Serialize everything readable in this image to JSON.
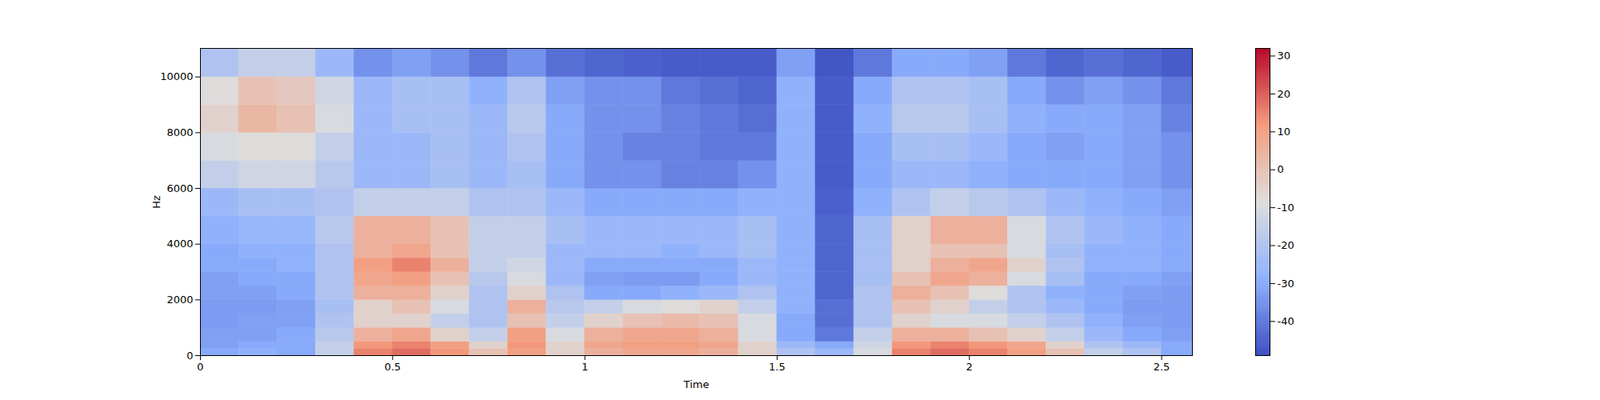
{
  "chart_data": {
    "type": "heatmap",
    "xlabel": "Time",
    "ylabel": "Hz",
    "xlim": [
      0,
      2.58
    ],
    "ylim": [
      0,
      11025
    ],
    "xticks": [
      0,
      0.5,
      1,
      1.5,
      2,
      2.5
    ],
    "yticks": [
      0,
      2000,
      4000,
      6000,
      8000,
      10000
    ],
    "x_edges": [
      0,
      0.1,
      0.2,
      0.3,
      0.4,
      0.5,
      0.6,
      0.7,
      0.8,
      0.9,
      1.0,
      1.1,
      1.2,
      1.3,
      1.4,
      1.5,
      1.6,
      1.7,
      1.8,
      1.9,
      2.0,
      2.1,
      2.2,
      2.3,
      2.4,
      2.5,
      2.58
    ],
    "y_edges": [
      0,
      250,
      500,
      1000,
      1500,
      2000,
      2500,
      3000,
      3500,
      4000,
      5000,
      6000,
      7000,
      8000,
      9000,
      10000,
      11025
    ],
    "cells": [
      [
        -30,
        -28,
        -30,
        -15,
        15,
        18,
        12,
        0,
        10,
        -5,
        5,
        8,
        8,
        5,
        -5,
        -20,
        -25,
        -10,
        15,
        18,
        15,
        10,
        0,
        -15,
        -20,
        -30
      ],
      [
        -32,
        -30,
        -30,
        -15,
        12,
        15,
        10,
        -5,
        12,
        -5,
        8,
        10,
        10,
        8,
        -5,
        -25,
        -30,
        -12,
        12,
        15,
        12,
        8,
        -5,
        -20,
        -25,
        -30
      ],
      [
        -32,
        -32,
        -30,
        -18,
        5,
        8,
        -5,
        -15,
        10,
        -10,
        5,
        8,
        8,
        5,
        -10,
        -30,
        -40,
        -15,
        5,
        5,
        0,
        -5,
        -15,
        -25,
        -30,
        -32
      ],
      [
        -33,
        -32,
        -32,
        -20,
        -5,
        -5,
        -15,
        -20,
        0,
        -15,
        -5,
        0,
        2,
        0,
        -10,
        -30,
        -42,
        -20,
        -5,
        -10,
        -10,
        -15,
        -20,
        -28,
        -32,
        -33
      ],
      [
        -33,
        -33,
        -32,
        -22,
        -5,
        0,
        -10,
        -20,
        5,
        -18,
        -15,
        -10,
        -8,
        -5,
        -15,
        -28,
        -42,
        -20,
        0,
        -5,
        -15,
        -20,
        -25,
        -30,
        -33,
        -33
      ],
      [
        -32,
        -32,
        -30,
        -20,
        5,
        5,
        -5,
        -20,
        -5,
        -20,
        -30,
        -30,
        -28,
        -25,
        -20,
        -28,
        -44,
        -20,
        5,
        0,
        -8,
        -20,
        -28,
        -30,
        -32,
        -33
      ],
      [
        -32,
        -30,
        -30,
        -20,
        8,
        10,
        0,
        -18,
        -10,
        -25,
        -32,
        -33,
        -33,
        -30,
        -25,
        -28,
        -44,
        -22,
        0,
        8,
        5,
        -10,
        -22,
        -30,
        -30,
        -32
      ],
      [
        -30,
        -30,
        -28,
        -20,
        10,
        15,
        5,
        -15,
        -12,
        -25,
        -30,
        -30,
        -30,
        -30,
        -25,
        -28,
        -44,
        -22,
        -5,
        5,
        8,
        -5,
        -20,
        -28,
        -28,
        -30
      ],
      [
        -30,
        -28,
        -28,
        -20,
        5,
        8,
        0,
        -15,
        -15,
        -25,
        -25,
        -25,
        -28,
        -25,
        -22,
        -28,
        -44,
        -22,
        -5,
        0,
        0,
        -10,
        -22,
        -28,
        -28,
        -30
      ],
      [
        -28,
        -26,
        -26,
        -18,
        5,
        5,
        0,
        -15,
        -15,
        -22,
        -25,
        -25,
        -25,
        -25,
        -22,
        -28,
        -44,
        -22,
        -5,
        5,
        5,
        -10,
        -20,
        -25,
        -28,
        -30
      ],
      [
        -25,
        -22,
        -22,
        -20,
        -15,
        -15,
        -15,
        -20,
        -20,
        -25,
        -30,
        -30,
        -30,
        -30,
        -28,
        -28,
        -45,
        -28,
        -20,
        -15,
        -18,
        -20,
        -25,
        -28,
        -30,
        -32
      ],
      [
        -15,
        -12,
        -12,
        -18,
        -25,
        -25,
        -22,
        -25,
        -22,
        -30,
        -35,
        -35,
        -38,
        -38,
        -35,
        -28,
        -46,
        -30,
        -25,
        -25,
        -28,
        -30,
        -30,
        -30,
        -32,
        -35
      ],
      [
        -10,
        -8,
        -8,
        -15,
        -25,
        -25,
        -22,
        -25,
        -20,
        -30,
        -35,
        -38,
        -38,
        -40,
        -40,
        -28,
        -46,
        -30,
        -22,
        -22,
        -25,
        -30,
        -32,
        -30,
        -32,
        -35
      ],
      [
        -5,
        3,
        0,
        -10,
        -25,
        -22,
        -22,
        -25,
        -18,
        -30,
        -35,
        -35,
        -38,
        -40,
        -42,
        -28,
        -46,
        -28,
        -18,
        -18,
        -22,
        -28,
        -30,
        -30,
        -32,
        -38
      ],
      [
        -8,
        0,
        -2,
        -12,
        -25,
        -22,
        -22,
        -28,
        -20,
        -32,
        -35,
        -35,
        -40,
        -42,
        -44,
        -28,
        -46,
        -30,
        -20,
        -20,
        -22,
        -30,
        -35,
        -32,
        -35,
        -40
      ],
      [
        -20,
        -15,
        -15,
        -25,
        -35,
        -32,
        -35,
        -40,
        -35,
        -42,
        -44,
        -45,
        -46,
        -46,
        -46,
        -32,
        -47,
        -40,
        -30,
        -30,
        -32,
        -40,
        -44,
        -42,
        -44,
        -46
      ]
    ],
    "colorbar": {
      "range": [
        -49,
        32
      ],
      "ticks": [
        -40,
        -30,
        -20,
        -10,
        0,
        10,
        20,
        30
      ]
    }
  }
}
